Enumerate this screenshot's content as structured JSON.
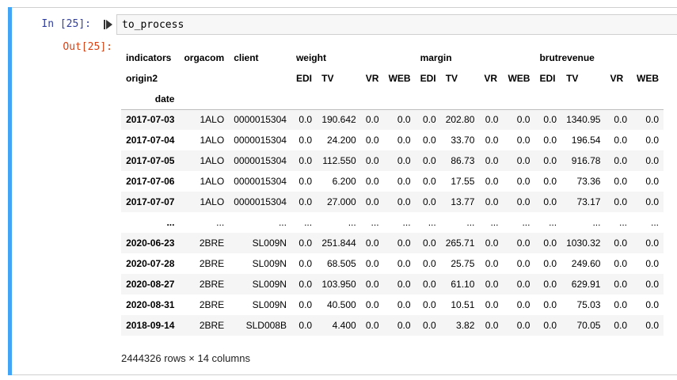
{
  "cell": {
    "in_prompt": "In [25]:",
    "out_prompt": "Out[25]:",
    "code": "to_process"
  },
  "table": {
    "header": {
      "row1_label": "indicators",
      "row1_cols": [
        "orgacom",
        "client"
      ],
      "groups": [
        "weight",
        "margin",
        "brutrevenue"
      ],
      "row2_label": "origin2",
      "subcols": [
        "EDI",
        "TV",
        "VR",
        "WEB"
      ],
      "index_name": "date"
    },
    "rows": [
      {
        "date": "2017-07-03",
        "orgacom": "1ALO",
        "client": "0000015304",
        "weight": [
          "0.0",
          "190.642",
          "0.0",
          "0.0"
        ],
        "margin": [
          "0.0",
          "202.80",
          "0.0",
          "0.0"
        ],
        "brutrevenue": [
          "0.0",
          "1340.95",
          "0.0",
          "0.0"
        ]
      },
      {
        "date": "2017-07-04",
        "orgacom": "1ALO",
        "client": "0000015304",
        "weight": [
          "0.0",
          "24.200",
          "0.0",
          "0.0"
        ],
        "margin": [
          "0.0",
          "33.70",
          "0.0",
          "0.0"
        ],
        "brutrevenue": [
          "0.0",
          "196.54",
          "0.0",
          "0.0"
        ]
      },
      {
        "date": "2017-07-05",
        "orgacom": "1ALO",
        "client": "0000015304",
        "weight": [
          "0.0",
          "112.550",
          "0.0",
          "0.0"
        ],
        "margin": [
          "0.0",
          "86.73",
          "0.0",
          "0.0"
        ],
        "brutrevenue": [
          "0.0",
          "916.78",
          "0.0",
          "0.0"
        ]
      },
      {
        "date": "2017-07-06",
        "orgacom": "1ALO",
        "client": "0000015304",
        "weight": [
          "0.0",
          "6.200",
          "0.0",
          "0.0"
        ],
        "margin": [
          "0.0",
          "17.55",
          "0.0",
          "0.0"
        ],
        "brutrevenue": [
          "0.0",
          "73.36",
          "0.0",
          "0.0"
        ]
      },
      {
        "date": "2017-07-07",
        "orgacom": "1ALO",
        "client": "0000015304",
        "weight": [
          "0.0",
          "27.000",
          "0.0",
          "0.0"
        ],
        "margin": [
          "0.0",
          "13.77",
          "0.0",
          "0.0"
        ],
        "brutrevenue": [
          "0.0",
          "73.17",
          "0.0",
          "0.0"
        ]
      },
      {
        "date": "...",
        "orgacom": "...",
        "client": "...",
        "weight": [
          "...",
          "...",
          "...",
          "..."
        ],
        "margin": [
          "...",
          "...",
          "...",
          "..."
        ],
        "brutrevenue": [
          "...",
          "...",
          "...",
          "..."
        ]
      },
      {
        "date": "2020-06-23",
        "orgacom": "2BRE",
        "client": "SL009N",
        "weight": [
          "0.0",
          "251.844",
          "0.0",
          "0.0"
        ],
        "margin": [
          "0.0",
          "265.71",
          "0.0",
          "0.0"
        ],
        "brutrevenue": [
          "0.0",
          "1030.32",
          "0.0",
          "0.0"
        ]
      },
      {
        "date": "2020-07-28",
        "orgacom": "2BRE",
        "client": "SL009N",
        "weight": [
          "0.0",
          "68.505",
          "0.0",
          "0.0"
        ],
        "margin": [
          "0.0",
          "25.75",
          "0.0",
          "0.0"
        ],
        "brutrevenue": [
          "0.0",
          "249.60",
          "0.0",
          "0.0"
        ]
      },
      {
        "date": "2020-08-27",
        "orgacom": "2BRE",
        "client": "SL009N",
        "weight": [
          "0.0",
          "103.950",
          "0.0",
          "0.0"
        ],
        "margin": [
          "0.0",
          "61.10",
          "0.0",
          "0.0"
        ],
        "brutrevenue": [
          "0.0",
          "629.91",
          "0.0",
          "0.0"
        ]
      },
      {
        "date": "2020-08-31",
        "orgacom": "2BRE",
        "client": "SL009N",
        "weight": [
          "0.0",
          "40.500",
          "0.0",
          "0.0"
        ],
        "margin": [
          "0.0",
          "10.51",
          "0.0",
          "0.0"
        ],
        "brutrevenue": [
          "0.0",
          "75.03",
          "0.0",
          "0.0"
        ]
      },
      {
        "date": "2018-09-14",
        "orgacom": "2BRE",
        "client": "SLD008B",
        "weight": [
          "0.0",
          "4.400",
          "0.0",
          "0.0"
        ],
        "margin": [
          "0.0",
          "3.82",
          "0.0",
          "0.0"
        ],
        "brutrevenue": [
          "0.0",
          "70.05",
          "0.0",
          "0.0"
        ]
      }
    ],
    "footer": "2444326 rows × 14 columns"
  },
  "colors": {
    "cell_selected_bar": "#42a5f5",
    "in_prompt": "#303f9f",
    "out_prompt": "#d84315",
    "input_background": "#f7f7f7",
    "striped_row": "#f5f5f5"
  },
  "icons": {
    "run": "run-cell-icon"
  }
}
